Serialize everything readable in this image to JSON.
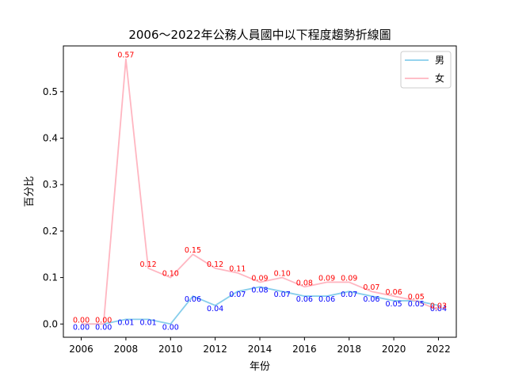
{
  "chart_data": {
    "type": "line",
    "title": "2006～2022年公務人員國中以下程度趨勢折線圖",
    "xlabel": "年份",
    "ylabel": "百分比",
    "x": [
      2006,
      2007,
      2008,
      2009,
      2010,
      2011,
      2012,
      2013,
      2014,
      2015,
      2016,
      2017,
      2018,
      2019,
      2020,
      2021,
      2022
    ],
    "x_ticks": [
      "2006",
      "2008",
      "2010",
      "2012",
      "2014",
      "2016",
      "2018",
      "2020",
      "2022"
    ],
    "y_ticks": [
      "0.0",
      "0.1",
      "0.2",
      "0.3",
      "0.4",
      "0.5"
    ],
    "xlim": [
      2005.2,
      2022.8
    ],
    "ylim": [
      -0.0285,
      0.5985
    ],
    "grid": false,
    "legend_position": "top-right",
    "series": [
      {
        "name": "男",
        "color": "#87ceeb",
        "label_color": "#0000ff",
        "values": [
          0.0,
          0.0,
          0.01,
          0.01,
          0.0,
          0.06,
          0.04,
          0.07,
          0.08,
          0.07,
          0.06,
          0.06,
          0.07,
          0.06,
          0.05,
          0.05,
          0.04
        ],
        "labels": [
          "0.00",
          "0.00",
          "0.01",
          "0.01",
          "0.00",
          "0.06",
          "0.04",
          "0.07",
          "0.08",
          "0.07",
          "0.06",
          "0.06",
          "0.07",
          "0.06",
          "0.05",
          "0.05",
          "0.04"
        ]
      },
      {
        "name": "女",
        "color": "#ffb6c1",
        "label_color": "#ff0000",
        "values": [
          0.0,
          0.0,
          0.57,
          0.12,
          0.1,
          0.15,
          0.12,
          0.11,
          0.09,
          0.1,
          0.08,
          0.09,
          0.09,
          0.07,
          0.06,
          0.05,
          0.03
        ],
        "labels": [
          "0.00",
          "0.00",
          "0.57",
          "0.12",
          "0.10",
          "0.15",
          "0.12",
          "0.11",
          "0.09",
          "0.10",
          "0.08",
          "0.09",
          "0.09",
          "0.07",
          "0.06",
          "0.05",
          "0.03"
        ]
      }
    ]
  }
}
